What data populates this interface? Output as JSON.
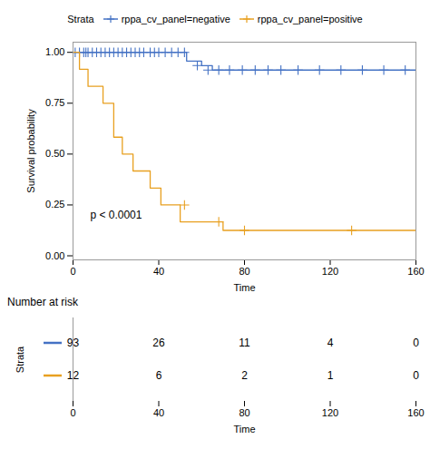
{
  "chart_data": [
    {
      "type": "step",
      "xlabel": "Time",
      "ylabel": "Survival probability",
      "xlim": [
        0,
        160
      ],
      "ylim": [
        -0.02,
        1.05
      ],
      "xticks": [
        0,
        40,
        80,
        120,
        160
      ],
      "yticks": [
        {
          "value": 0.0,
          "label": "0.00"
        },
        0.25,
        {
          "value": 0.5,
          "label": "0.50"
        },
        0.75,
        {
          "value": 1.0,
          "label": "1.00"
        }
      ],
      "legend_title": "Strata",
      "legend": "top",
      "series": [
        {
          "name": "rppa_cv_panel=negative",
          "color": "#4472C4",
          "marker": "plus",
          "x": [
            0,
            53,
            53,
            60,
            60,
            65,
            65,
            160
          ],
          "values": [
            1.0,
            1.0,
            0.957,
            0.957,
            0.935,
            0.935,
            0.913,
            0.913
          ],
          "censors_x": [
            1,
            3,
            5,
            6,
            7,
            9,
            11,
            13,
            15,
            17,
            19,
            21,
            23,
            25,
            27,
            29,
            31,
            33,
            36,
            38,
            40,
            43,
            46,
            49,
            52,
            58,
            63,
            68,
            73,
            79,
            85,
            91,
            97,
            105,
            115,
            125,
            135,
            145,
            155
          ],
          "censors_y": [
            1.0,
            1.0,
            1.0,
            1.0,
            1.0,
            1.0,
            1.0,
            1.0,
            1.0,
            1.0,
            1.0,
            1.0,
            1.0,
            1.0,
            1.0,
            1.0,
            1.0,
            1.0,
            1.0,
            1.0,
            1.0,
            1.0,
            1.0,
            1.0,
            1.0,
            0.935,
            0.913,
            0.913,
            0.913,
            0.913,
            0.913,
            0.913,
            0.913,
            0.913,
            0.913,
            0.913,
            0.913,
            0.913,
            0.913
          ]
        },
        {
          "name": "rppa_cv_panel=positive",
          "color": "#E8A020",
          "marker": "plus",
          "x": [
            0,
            3,
            3,
            7,
            7,
            14,
            14,
            19,
            19,
            23,
            23,
            28,
            28,
            36,
            36,
            41,
            41,
            47,
            47,
            50,
            50,
            65,
            65,
            70,
            70,
            97,
            97,
            160
          ],
          "values": [
            1.0,
            1.0,
            0.917,
            0.917,
            0.833,
            0.833,
            0.75,
            0.75,
            0.583,
            0.583,
            0.5,
            0.5,
            0.417,
            0.417,
            0.333,
            0.333,
            0.25,
            0.25,
            0.25,
            0.25,
            0.167,
            0.167,
            0.167,
            0.167,
            0.125,
            0.125,
            0.125,
            0.125
          ],
          "censors_x": [
            52,
            68,
            80,
            130
          ],
          "censors_y": [
            0.25,
            0.167,
            0.125,
            0.125
          ]
        }
      ],
      "annotations": [
        {
          "text": "p < 0.0001",
          "x": 8,
          "y": 0.2
        }
      ]
    },
    {
      "type": "table",
      "title": "Number at risk",
      "xlabel": "Time",
      "ylabel": "Strata",
      "xlim": [
        0,
        160
      ],
      "xticks": [
        0,
        40,
        80,
        120,
        160
      ],
      "x": [
        0,
        40,
        80,
        120,
        160
      ],
      "series": [
        {
          "color": "#4472C4",
          "values": [
            93,
            26,
            11,
            4,
            0
          ]
        },
        {
          "color": "#E8A020",
          "values": [
            12,
            6,
            2,
            1,
            0
          ]
        }
      ]
    }
  ]
}
